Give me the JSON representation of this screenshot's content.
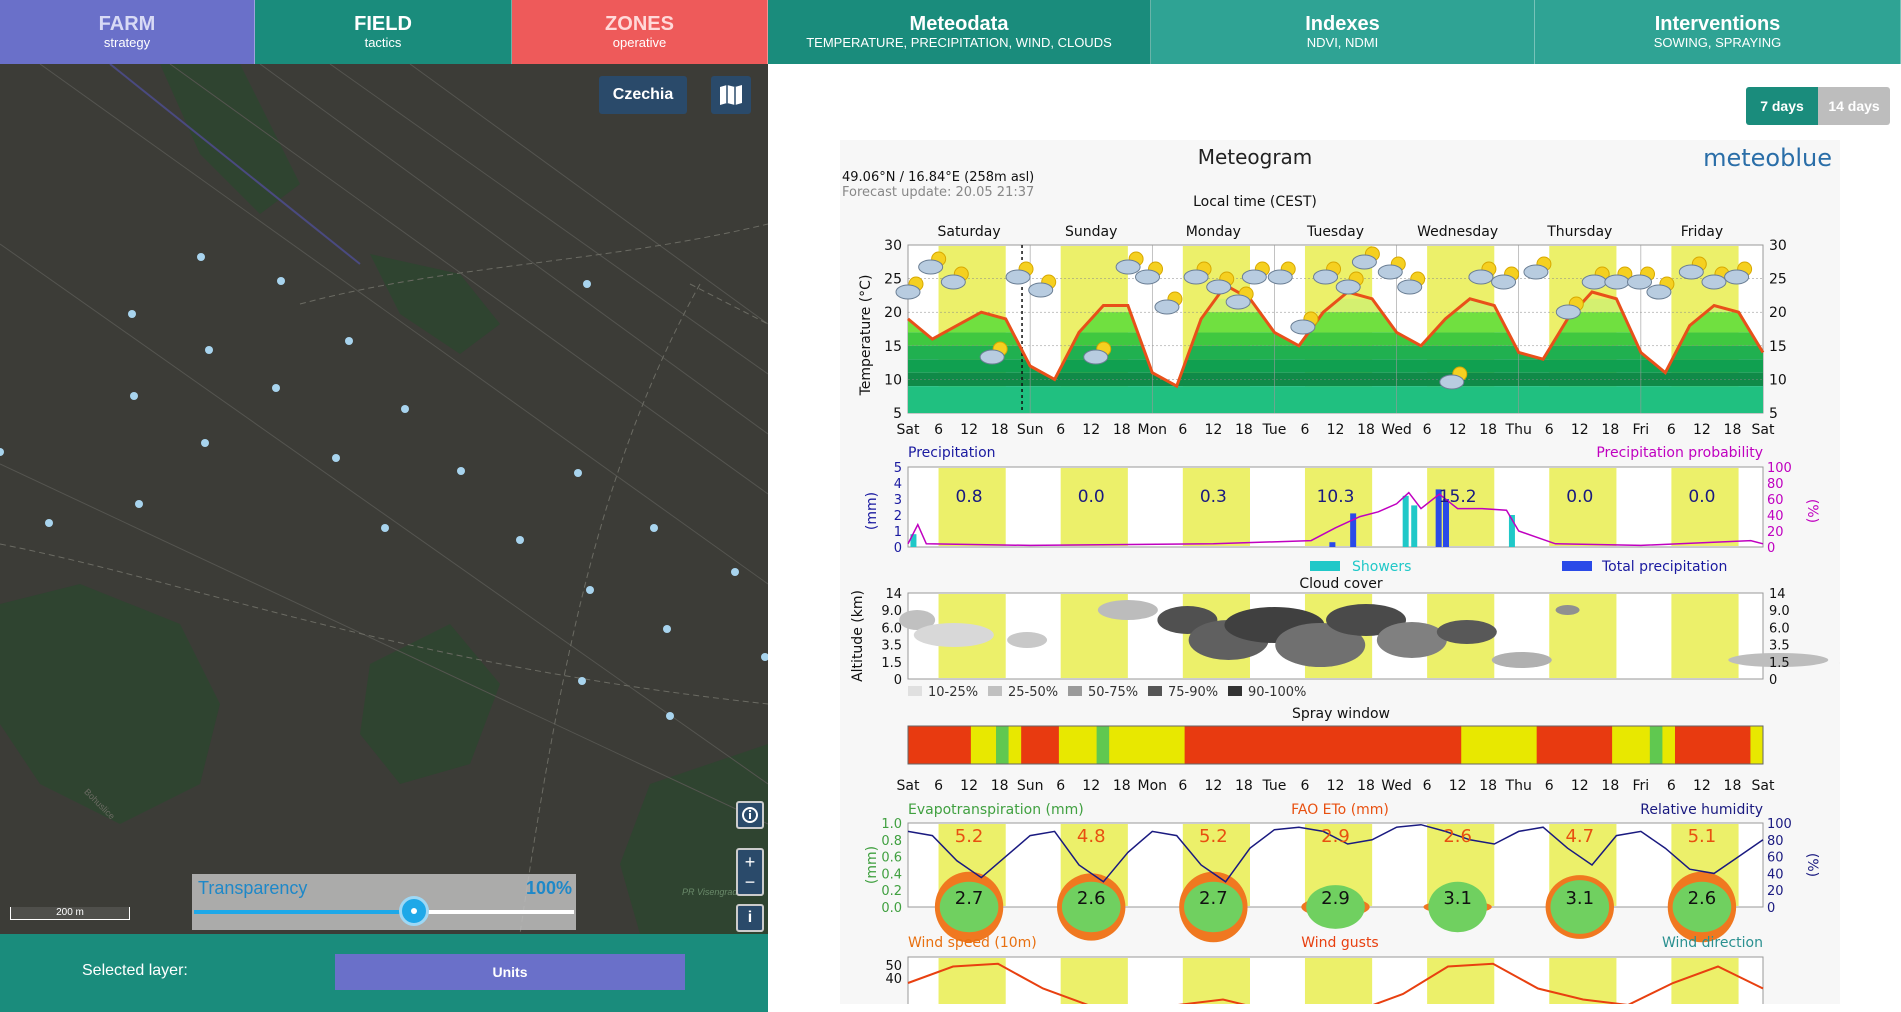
{
  "nav": {
    "farm": {
      "title": "FARM",
      "sub": "strategy"
    },
    "field": {
      "title": "FIELD",
      "sub": "tactics"
    },
    "zones": {
      "title": "ZONES",
      "sub": "operative"
    },
    "meteodata": {
      "title": "Meteodata",
      "sub": "TEMPERATURE, PRECIPITATION, WIND, CLOUDS"
    },
    "indexes": {
      "title": "Indexes",
      "sub": "NDVI, NDMI"
    },
    "interventions": {
      "title": "Interventions",
      "sub": "SOWING, SPRAYING"
    }
  },
  "map": {
    "country_button": "Czechia",
    "scale_label": "200 m",
    "place_label": "PR Visengrad",
    "road_label": "Bohuslice",
    "transparency": {
      "label": "Transparency",
      "value_label": "100%",
      "value": 1.0
    }
  },
  "footer": {
    "selected_layer_label": "Selected layer:",
    "units_button": "Units"
  },
  "toggle": {
    "days7": "7 days",
    "days14": "14 days"
  },
  "meteogram": {
    "title": "Meteogram",
    "brand": "meteoblue",
    "location": "49.06°N / 16.84°E (258m asl)",
    "forecast_update": "Forecast update: 20.05 21:37",
    "local_time": "Local time (CEST)",
    "days": [
      "Saturday",
      "Sunday",
      "Monday",
      "Tuesday",
      "Wednesday",
      "Thursday",
      "Friday"
    ],
    "time_ticks": [
      "Sat",
      "6",
      "12",
      "18",
      "Sun",
      "6",
      "12",
      "18",
      "Mon",
      "6",
      "12",
      "18",
      "Tue",
      "6",
      "12",
      "18",
      "Wed",
      "6",
      "12",
      "18",
      "Thu",
      "6",
      "12",
      "18",
      "Fri",
      "6",
      "12",
      "18",
      "Sat"
    ],
    "temp_ylabel": "Temperature (°C)",
    "temp_ticks": [
      "30",
      "25",
      "20",
      "15",
      "10",
      "5"
    ],
    "precip_title": "Precipitation",
    "precip_prob_title": "Precipitation probability",
    "precip_ylabel": "(mm)",
    "precip_prob_ylabel": "(%)",
    "precip_ticks": [
      "5",
      "4",
      "3",
      "2",
      "1",
      "0"
    ],
    "precip_prob_ticks": [
      "100",
      "80",
      "60",
      "40",
      "20",
      "0"
    ],
    "precip_daily": [
      "0.8",
      "0.0",
      "0.3",
      "10.3",
      "15.2",
      "0.0",
      "0.0"
    ],
    "legend_showers": "Showers",
    "legend_total": "Total precipitation",
    "cloud_title": "Cloud cover",
    "cloud_ylabel": "Altitude (km)",
    "cloud_ticks": [
      "14",
      "9.0",
      "6.0",
      "3.5",
      "1.5",
      "0"
    ],
    "cloud_legend": [
      "10-25%",
      "25-50%",
      "50-75%",
      "75-90%",
      "90-100%"
    ],
    "spray_title": "Spray window",
    "evap_title": "Evapotranspiration (mm)",
    "fao_title": "FAO ETo (mm)",
    "rh_title": "Relative humidity",
    "evap_ylabel": "(mm)",
    "evap_ticks": [
      "1.0",
      "0.8",
      "0.6",
      "0.4",
      "0.2",
      "0.0"
    ],
    "rh_ticks": [
      "100",
      "80",
      "60",
      "40",
      "20",
      "0"
    ],
    "fao_daily": [
      "5.2",
      "4.8",
      "5.2",
      "2.9",
      "2.6",
      "4.7",
      "5.1"
    ],
    "evap_daily": [
      "2.7",
      "2.6",
      "2.7",
      "2.9",
      "3.1",
      "3.1",
      "2.6"
    ],
    "wind_speed_title": "Wind speed (10m)",
    "wind_gusts_title": "Wind gusts",
    "wind_dir_title": "Wind direction",
    "wind_ticks": [
      "50",
      "40"
    ]
  },
  "chart_data": {
    "type": "line",
    "title": "Meteogram",
    "xlabel": "Local time (CEST)",
    "ylabel": "Temperature (°C)",
    "ylim": [
      5,
      30
    ],
    "x": [
      "Sat 00",
      "Sat 06",
      "Sat 12",
      "Sat 15",
      "Sat 18",
      "Sun 00",
      "Sun 06",
      "Sun 12",
      "Sun 15",
      "Sun 18",
      "Mon 00",
      "Mon 06",
      "Mon 12",
      "Mon 15",
      "Mon 18",
      "Tue 00",
      "Tue 06",
      "Tue 12",
      "Tue 15",
      "Tue 18",
      "Wed 00",
      "Wed 06",
      "Wed 12",
      "Wed 15",
      "Wed 18",
      "Thu 00",
      "Thu 06",
      "Thu 12",
      "Thu 15",
      "Thu 18",
      "Fri 00",
      "Fri 06",
      "Fri 12",
      "Fri 15",
      "Fri 18",
      "Sat 00"
    ],
    "series": [
      {
        "name": "Temperature",
        "values": [
          19,
          16,
          18,
          20,
          19,
          12,
          10,
          17,
          21,
          21,
          11,
          9,
          19,
          24,
          22,
          17,
          15,
          20,
          23,
          22,
          17,
          15,
          19,
          22,
          21,
          14,
          13,
          19,
          23,
          22,
          14,
          11,
          18,
          21,
          20,
          14
        ]
      }
    ],
    "precip_daily_mm": [
      0.8,
      0.0,
      0.3,
      10.3,
      15.2,
      0.0,
      0.0
    ],
    "fao_eto_daily_mm": [
      5.2,
      4.8,
      5.2,
      2.9,
      2.6,
      4.7,
      5.1
    ],
    "evapotranspiration_daily_mm": [
      2.7,
      2.6,
      2.7,
      2.9,
      3.1,
      3.1,
      2.6
    ]
  }
}
